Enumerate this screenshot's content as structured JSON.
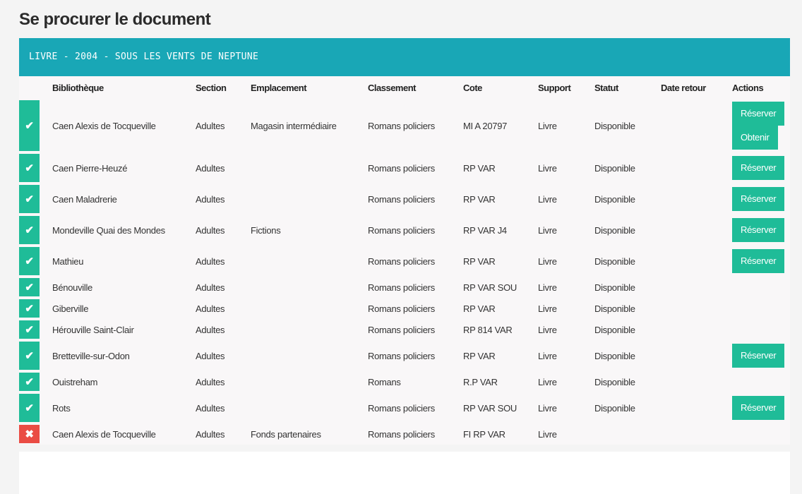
{
  "page_title": "Se procurer le document",
  "banner": "LIVRE - 2004 - SOUS LES VENTS DE NEPTUNE",
  "colors": {
    "available": "#1fbc98",
    "unavailable": "#ea4c44",
    "banner": "#19a7b6"
  },
  "columns": [
    "Bibliothèque",
    "Section",
    "Emplacement",
    "Classement",
    "Cote",
    "Support",
    "Statut",
    "Date retour",
    "Actions"
  ],
  "rows": [
    {
      "ok": true,
      "bib": "Caen Alexis de Tocqueville",
      "section": "Adultes",
      "emplacement": "Magasin intermédiaire",
      "classement": "Romans policiers",
      "cote": "MI A 20797",
      "support": "Livre",
      "statut": "Disponible",
      "date": "",
      "actions": [
        "Réserver",
        "Obtenir"
      ]
    },
    {
      "ok": true,
      "bib": "Caen Pierre-Heuzé",
      "section": "Adultes",
      "emplacement": "",
      "classement": "Romans policiers",
      "cote": "RP VAR",
      "support": "Livre",
      "statut": "Disponible",
      "date": "",
      "actions": [
        "Réserver"
      ]
    },
    {
      "ok": true,
      "bib": "Caen Maladrerie",
      "section": "Adultes",
      "emplacement": "",
      "classement": "Romans policiers",
      "cote": "RP VAR",
      "support": "Livre",
      "statut": "Disponible",
      "date": "",
      "actions": [
        "Réserver"
      ]
    },
    {
      "ok": true,
      "bib": "Mondeville Quai des Mondes",
      "section": "Adultes",
      "emplacement": "Fictions",
      "classement": "Romans policiers",
      "cote": "RP VAR J4",
      "support": "Livre",
      "statut": "Disponible",
      "date": "",
      "actions": [
        "Réserver"
      ]
    },
    {
      "ok": true,
      "bib": "Mathieu",
      "section": "Adultes",
      "emplacement": "",
      "classement": "Romans policiers",
      "cote": "RP VAR",
      "support": "Livre",
      "statut": "Disponible",
      "date": "",
      "actions": [
        "Réserver"
      ]
    },
    {
      "ok": true,
      "bib": "Bénouville",
      "section": "Adultes",
      "emplacement": "",
      "classement": "Romans policiers",
      "cote": "RP VAR SOU",
      "support": "Livre",
      "statut": "Disponible",
      "date": "",
      "actions": []
    },
    {
      "ok": true,
      "bib": "Giberville",
      "section": "Adultes",
      "emplacement": "",
      "classement": "Romans policiers",
      "cote": "RP VAR",
      "support": "Livre",
      "statut": "Disponible",
      "date": "",
      "actions": []
    },
    {
      "ok": true,
      "bib": "Hérouville Saint-Clair",
      "section": "Adultes",
      "emplacement": "",
      "classement": "Romans policiers",
      "cote": "RP 814 VAR",
      "support": "Livre",
      "statut": "Disponible",
      "date": "",
      "actions": []
    },
    {
      "ok": true,
      "bib": "Bretteville-sur-Odon",
      "section": "Adultes",
      "emplacement": "",
      "classement": "Romans policiers",
      "cote": "RP VAR",
      "support": "Livre",
      "statut": "Disponible",
      "date": "",
      "actions": [
        "Réserver"
      ]
    },
    {
      "ok": true,
      "bib": "Ouistreham",
      "section": "Adultes",
      "emplacement": "",
      "classement": "Romans",
      "cote": "R.P VAR",
      "support": "Livre",
      "statut": "Disponible",
      "date": "",
      "actions": []
    },
    {
      "ok": true,
      "bib": "Rots",
      "section": "Adultes",
      "emplacement": "",
      "classement": "Romans policiers",
      "cote": "RP VAR SOU",
      "support": "Livre",
      "statut": "Disponible",
      "date": "",
      "actions": [
        "Réserver"
      ]
    },
    {
      "ok": false,
      "bib": "Caen Alexis de Tocqueville",
      "section": "Adultes",
      "emplacement": "Fonds partenaires",
      "classement": "Romans policiers",
      "cote": "FI RP VAR",
      "support": "Livre",
      "statut": "",
      "date": "",
      "actions": []
    }
  ]
}
